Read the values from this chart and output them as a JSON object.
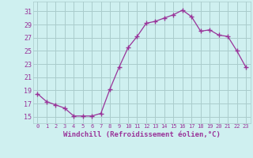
{
  "x": [
    0,
    1,
    2,
    3,
    4,
    5,
    6,
    7,
    8,
    9,
    10,
    11,
    12,
    13,
    14,
    15,
    16,
    17,
    18,
    19,
    20,
    21,
    22,
    23
  ],
  "y": [
    18.5,
    17.3,
    16.8,
    16.3,
    15.1,
    15.1,
    15.1,
    15.5,
    19.2,
    22.5,
    25.5,
    27.2,
    29.2,
    29.5,
    30.0,
    30.5,
    31.2,
    30.2,
    28.0,
    28.2,
    27.4,
    27.2,
    25.0,
    22.5
  ],
  "line_color": "#993399",
  "marker": "+",
  "marker_size": 4,
  "bg_color": "#cff0f0",
  "grid_color": "#aacccc",
  "xlabel": "Windchill (Refroidissement éolien,°C)",
  "xlabel_color": "#993399",
  "ylabel_ticks": [
    15,
    17,
    19,
    21,
    23,
    25,
    27,
    29,
    31
  ],
  "ylim": [
    14.0,
    32.5
  ],
  "xlim": [
    -0.5,
    23.5
  ],
  "tick_color": "#993399",
  "xtick_fontsize": 5.0,
  "ytick_fontsize": 6.0,
  "xlabel_fontsize": 6.5
}
